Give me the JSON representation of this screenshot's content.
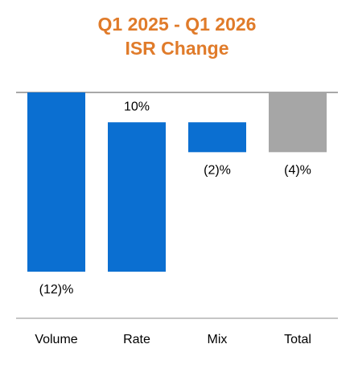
{
  "chart_data": {
    "type": "waterfall",
    "title": [
      "Q1 2025 - Q1 2026",
      "ISR Change"
    ],
    "categories": [
      "Volume",
      "Rate",
      "Mix",
      "Total"
    ],
    "values": [
      -12,
      10,
      -2,
      -4
    ],
    "value_labels": [
      "(12)%",
      "10%",
      "(2)%",
      "(4)%"
    ],
    "is_total": [
      false,
      false,
      false,
      true
    ],
    "colors": [
      "#0b6fd1",
      "#0b6fd1",
      "#0b6fd1",
      "#a6a6a6"
    ],
    "title_color": "#e07b2a"
  }
}
